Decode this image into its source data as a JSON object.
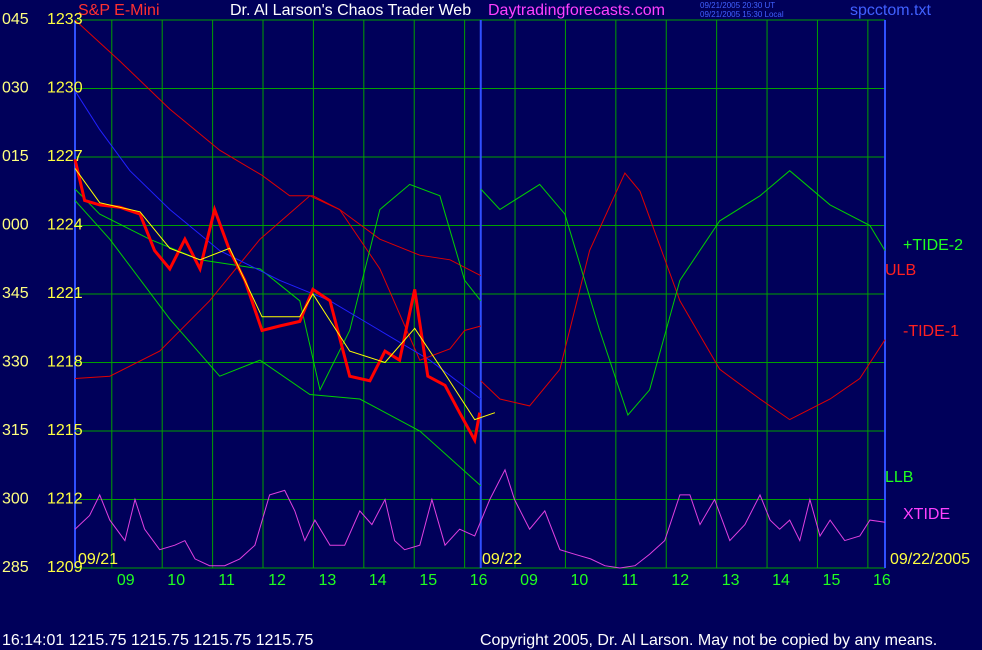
{
  "chart_data": {
    "type": "line",
    "title": "Dr. Al Larson's Chaos Trader Web",
    "symbol": "S&P E-Mini",
    "website": "Daytradingforecasts.com",
    "timestamps": [
      "09/21/2005 20:30 UT",
      "09/21/2005 15:30 Local"
    ],
    "file_name": "spcctom.txt",
    "status_line": "16:14:01  1215.75 1215.75 1215.75 1215.75",
    "copyright": "Copyright 2005, Dr. Al Larson. May not be copied by any means.",
    "date_labels": [
      "09/21",
      "09/22",
      "09/22/2005"
    ],
    "ylim": [
      1209,
      1233
    ],
    "yticks": [
      1233,
      1230,
      1227,
      1224,
      1221,
      1218,
      1215,
      1212,
      1209
    ],
    "ytick_codes": [
      "045",
      "030",
      "015",
      "000",
      "345",
      "330",
      "315",
      "300",
      "285"
    ],
    "xlim": [
      -0.73,
      15.34
    ],
    "xticks": [
      {
        "value": 0,
        "label": "09"
      },
      {
        "value": 1,
        "label": "10"
      },
      {
        "value": 2,
        "label": "11"
      },
      {
        "value": 3,
        "label": "12"
      },
      {
        "value": 4,
        "label": "13"
      },
      {
        "value": 5,
        "label": "14"
      },
      {
        "value": 6,
        "label": "15"
      },
      {
        "value": 7,
        "label": "16"
      },
      {
        "value": 8,
        "label": "09"
      },
      {
        "value": 9,
        "label": "10"
      },
      {
        "value": 10,
        "label": "11"
      },
      {
        "value": 11,
        "label": "12"
      },
      {
        "value": 12,
        "label": "13"
      },
      {
        "value": 13,
        "label": "14"
      },
      {
        "value": 14,
        "label": "15"
      },
      {
        "value": 15,
        "label": "16"
      }
    ],
    "day_divider": 7.32,
    "grid": true,
    "series": [
      {
        "name": "ULB",
        "color": "#e00000",
        "x": [
          -0.73,
          0.16,
          1.15,
          2.14,
          2.98,
          3.53,
          3.99,
          4.52,
          5.32,
          6.11,
          6.71,
          7.32
        ],
        "values": [
          1233,
          1231.2,
          1229.1,
          1227.3,
          1226.2,
          1225.3,
          1225.3,
          1224.7,
          1223.4,
          1222.7,
          1222.5,
          1221.8
        ]
      },
      {
        "name": "-TIDE-1",
        "color": "#e00000",
        "x": [
          -0.73,
          -0.04,
          0.95,
          1.94,
          2.94,
          3.93,
          4.52,
          5.32,
          6.11,
          6.71,
          7.0,
          7.32,
          7.32,
          7.32,
          7.7,
          8.29,
          8.89,
          9.48,
          10.18,
          10.48,
          11.27,
          12.06,
          12.86,
          13.45,
          14.25,
          14.84,
          15.34
        ],
        "values": [
          1217.3,
          1217.4,
          1218.5,
          1220.7,
          1223.4,
          1225.3,
          1224.7,
          1222.1,
          1218.1,
          1218.6,
          1219.4,
          1219.6,
          null,
          1217.2,
          1216.4,
          1216.1,
          1217.7,
          1222.9,
          1226.3,
          1225.5,
          1220.7,
          1217.7,
          1216.4,
          1215.5,
          1216.4,
          1217.3,
          1219.0
        ]
      },
      {
        "name": "+TIDE-2",
        "color": "#00d000",
        "x": [
          -0.73,
          -0.24,
          0.75,
          1.75,
          2.94,
          3.73,
          4.13,
          4.72,
          5.32,
          5.91,
          6.51,
          7.0,
          7.32,
          7.32,
          7.32,
          7.7,
          8.49,
          8.99,
          9.68,
          10.24,
          10.67,
          11.27,
          12.06,
          12.86,
          13.45,
          14.25,
          15.04,
          15.34
        ],
        "values": [
          1225.6,
          1224.5,
          1223.4,
          1222.5,
          1222.1,
          1220.7,
          1216.8,
          1219.4,
          1224.7,
          1225.8,
          1225.3,
          1221.6,
          1220.7,
          null,
          1225.6,
          1224.7,
          1225.8,
          1224.5,
          1219.4,
          1215.7,
          1216.8,
          1221.6,
          1224.2,
          1225.3,
          1226.4,
          1224.9,
          1224.0,
          1222.9
        ]
      },
      {
        "name": "LLB",
        "color": "#00d000",
        "x": [
          -0.73,
          -0.04,
          1.15,
          2.14,
          2.94,
          3.93,
          4.92,
          6.11,
          7.32
        ],
        "values": [
          1225.1,
          1223.4,
          1219.9,
          1217.4,
          1218.1,
          1216.6,
          1216.4,
          1215.0,
          1212.6
        ]
      },
      {
        "name": "XTIDE",
        "color": "#e040e0",
        "x": [
          -0.73,
          -0.44,
          -0.24,
          -0.04,
          0.26,
          0.46,
          0.65,
          0.95,
          1.25,
          1.45,
          1.65,
          1.94,
          2.24,
          2.54,
          2.84,
          3.13,
          3.43,
          3.63,
          3.83,
          4.03,
          4.33,
          4.62,
          4.92,
          5.16,
          5.42,
          5.61,
          5.81,
          6.11,
          6.35,
          6.61,
          6.9,
          7.2,
          7.5,
          7.8,
          7.99,
          8.29,
          8.59,
          8.89,
          9.19,
          9.5,
          9.78,
          10.08,
          10.38,
          10.67,
          10.97,
          11.27,
          11.47,
          11.67,
          11.96,
          12.26,
          12.56,
          12.86,
          13.06,
          13.25,
          13.45,
          13.65,
          13.85,
          14.05,
          14.25,
          14.54,
          14.84,
          15.04,
          15.34
        ],
        "values": [
          1210.7,
          1211.3,
          1212.2,
          1211.1,
          1210.2,
          1212.0,
          1210.7,
          1209.8,
          1210.0,
          1210.2,
          1209.4,
          1209.1,
          1209.1,
          1209.4,
          1210.0,
          1212.2,
          1212.4,
          1211.5,
          1210.2,
          1211.1,
          1210.0,
          1210.0,
          1211.5,
          1210.9,
          1212.0,
          1210.2,
          1209.8,
          1210.0,
          1212.0,
          1210.0,
          1210.7,
          1210.4,
          1212.0,
          1213.3,
          1212.0,
          1210.7,
          1211.5,
          1209.8,
          1209.6,
          1209.4,
          1209.1,
          1209.0,
          1209.1,
          1209.6,
          1210.2,
          1212.2,
          1212.2,
          1210.9,
          1212.0,
          1210.2,
          1210.9,
          1212.2,
          1211.1,
          1210.7,
          1211.1,
          1210.2,
          1212.0,
          1210.4,
          1211.1,
          1210.2,
          1210.4,
          1211.1,
          1211.0
        ]
      },
      {
        "color": "#2020ff",
        "x": [
          -0.73,
          -0.24,
          0.36,
          1.15,
          2.14,
          3.33,
          4.33,
          5.32,
          6.31,
          7.32
        ],
        "values": [
          1229.9,
          1228.2,
          1226.4,
          1224.7,
          1222.9,
          1221.6,
          1220.7,
          1219.4,
          1218.1,
          1216.4
        ]
      },
      {
        "color": "#ff0000",
        "width": 3,
        "x": [
          -0.73,
          -0.54,
          -0.24,
          0.16,
          0.56,
          0.85,
          1.15,
          1.45,
          1.75,
          2.04,
          2.34,
          2.64,
          2.98,
          3.33,
          3.73,
          3.99,
          4.33,
          4.72,
          5.12,
          5.42,
          5.71,
          6.01,
          6.27,
          6.61,
          6.9,
          7.2,
          7.3
        ],
        "values": [
          1226.9,
          1225.1,
          1224.9,
          1224.8,
          1224.5,
          1222.9,
          1222.1,
          1223.4,
          1222.1,
          1224.7,
          1222.9,
          1221.6,
          1219.4,
          1219.6,
          1219.8,
          1221.2,
          1220.7,
          1217.4,
          1217.2,
          1218.5,
          1218.1,
          1221.2,
          1217.4,
          1217.0,
          1215.8,
          1214.6,
          1215.8
        ]
      },
      {
        "color": "#ffff00",
        "x": [
          -0.73,
          -0.24,
          0.56,
          1.15,
          1.75,
          2.34,
          2.98,
          3.73,
          3.99,
          4.72,
          5.42,
          6.01,
          6.61,
          7.2,
          7.6
        ],
        "values": [
          1226.5,
          1225.0,
          1224.6,
          1223.0,
          1222.5,
          1223.0,
          1220.0,
          1220.0,
          1221.0,
          1218.5,
          1218.0,
          1219.5,
          1217.5,
          1215.5,
          1215.8
        ]
      }
    ]
  }
}
